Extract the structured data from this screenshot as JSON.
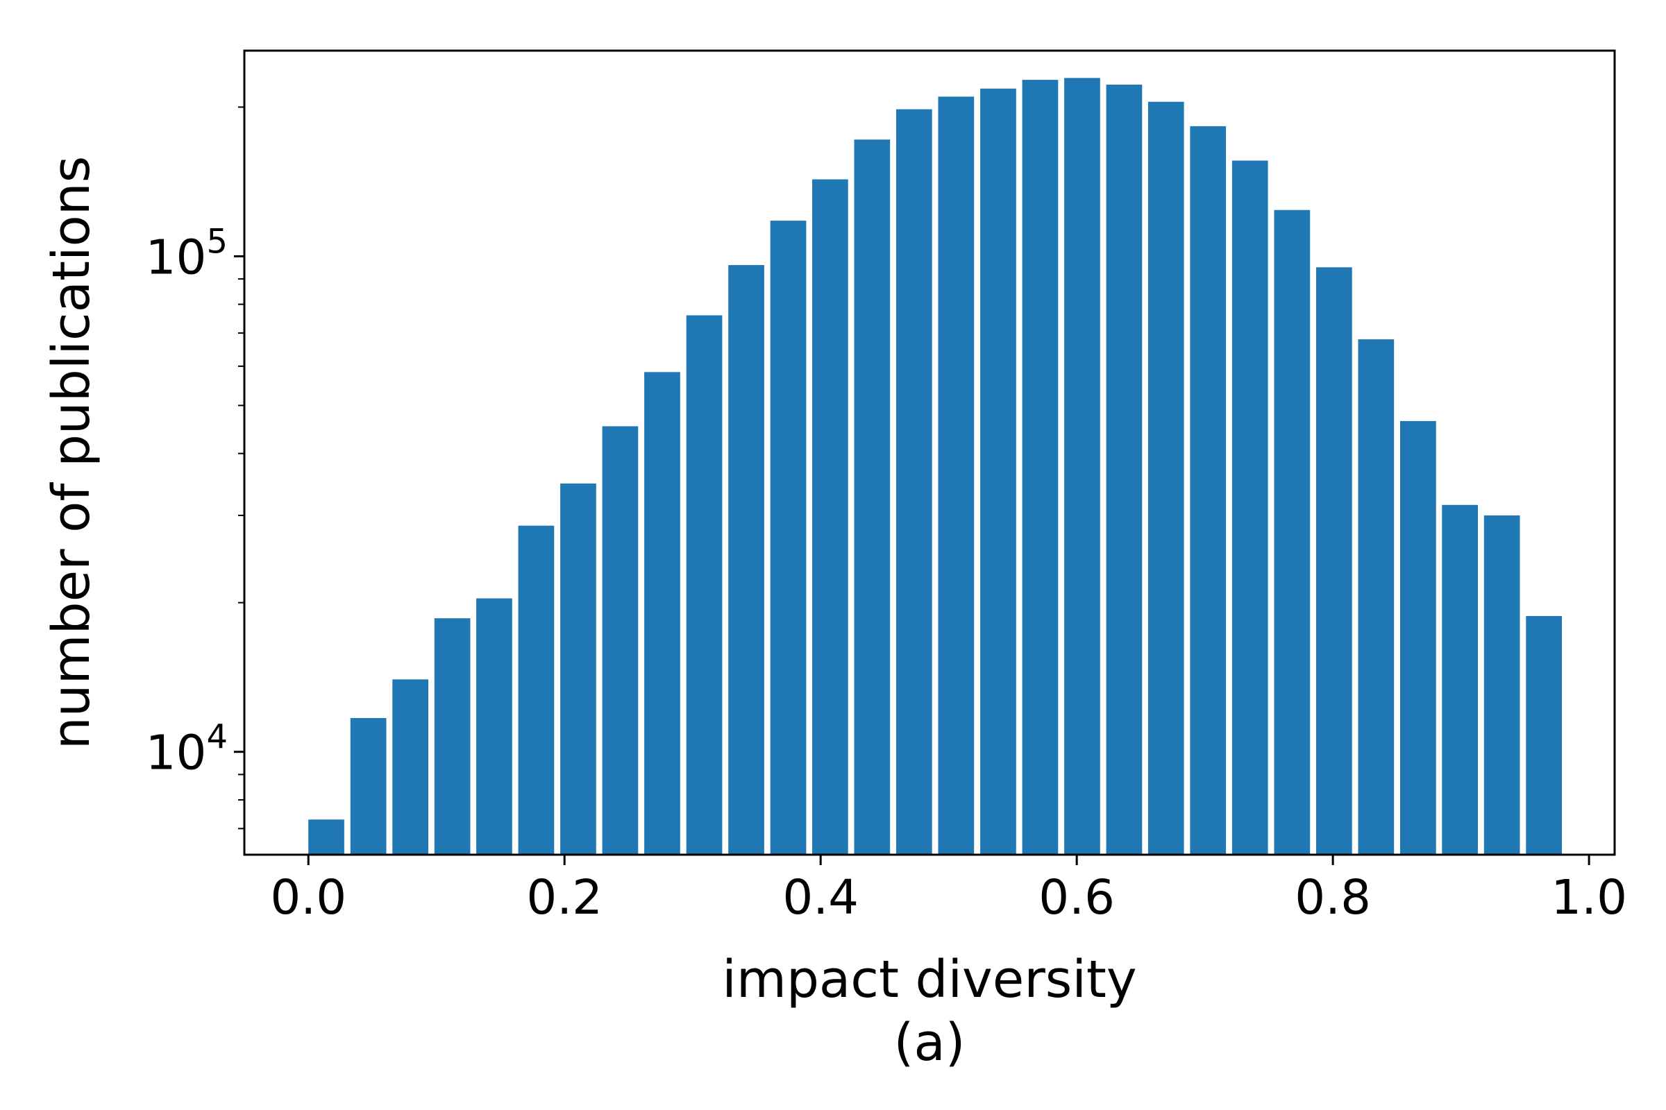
{
  "chart_data": {
    "type": "bar",
    "xlabel": "impact diversity",
    "ylabel": "number of publications",
    "caption": "(a)",
    "y_scale": "log",
    "xlim": [
      -0.05,
      1.02
    ],
    "ylim": [
      6200,
      260000
    ],
    "bar_color": "#1f77b4",
    "bar_width": 0.028,
    "x_ticks": [
      {
        "value": 0.0,
        "label": "0.0"
      },
      {
        "value": 0.2,
        "label": "0.2"
      },
      {
        "value": 0.4,
        "label": "0.4"
      },
      {
        "value": 0.6,
        "label": "0.6"
      },
      {
        "value": 0.8,
        "label": "0.8"
      },
      {
        "value": 1.0,
        "label": "1.0"
      }
    ],
    "y_ticks": [
      {
        "value": 10000,
        "base": "10",
        "exp": "4"
      },
      {
        "value": 100000,
        "base": "10",
        "exp": "5"
      }
    ],
    "bins": [
      0.0,
      0.0328,
      0.0656,
      0.0984,
      0.1311,
      0.1639,
      0.1967,
      0.2295,
      0.2623,
      0.2951,
      0.3279,
      0.3607,
      0.3934,
      0.4262,
      0.459,
      0.4918,
      0.5246,
      0.5574,
      0.5902,
      0.623,
      0.6557,
      0.6885,
      0.7213,
      0.7541,
      0.7869,
      0.8197,
      0.8525,
      0.8852,
      0.918,
      0.9508
    ],
    "values": [
      7300,
      11700,
      14000,
      18600,
      20400,
      28600,
      34800,
      45400,
      58400,
      76000,
      96000,
      118000,
      143000,
      172000,
      198000,
      210000,
      218000,
      227000,
      229000,
      222000,
      205000,
      183000,
      156000,
      124000,
      95000,
      68000,
      46500,
      31500,
      30000,
      18800
    ]
  }
}
